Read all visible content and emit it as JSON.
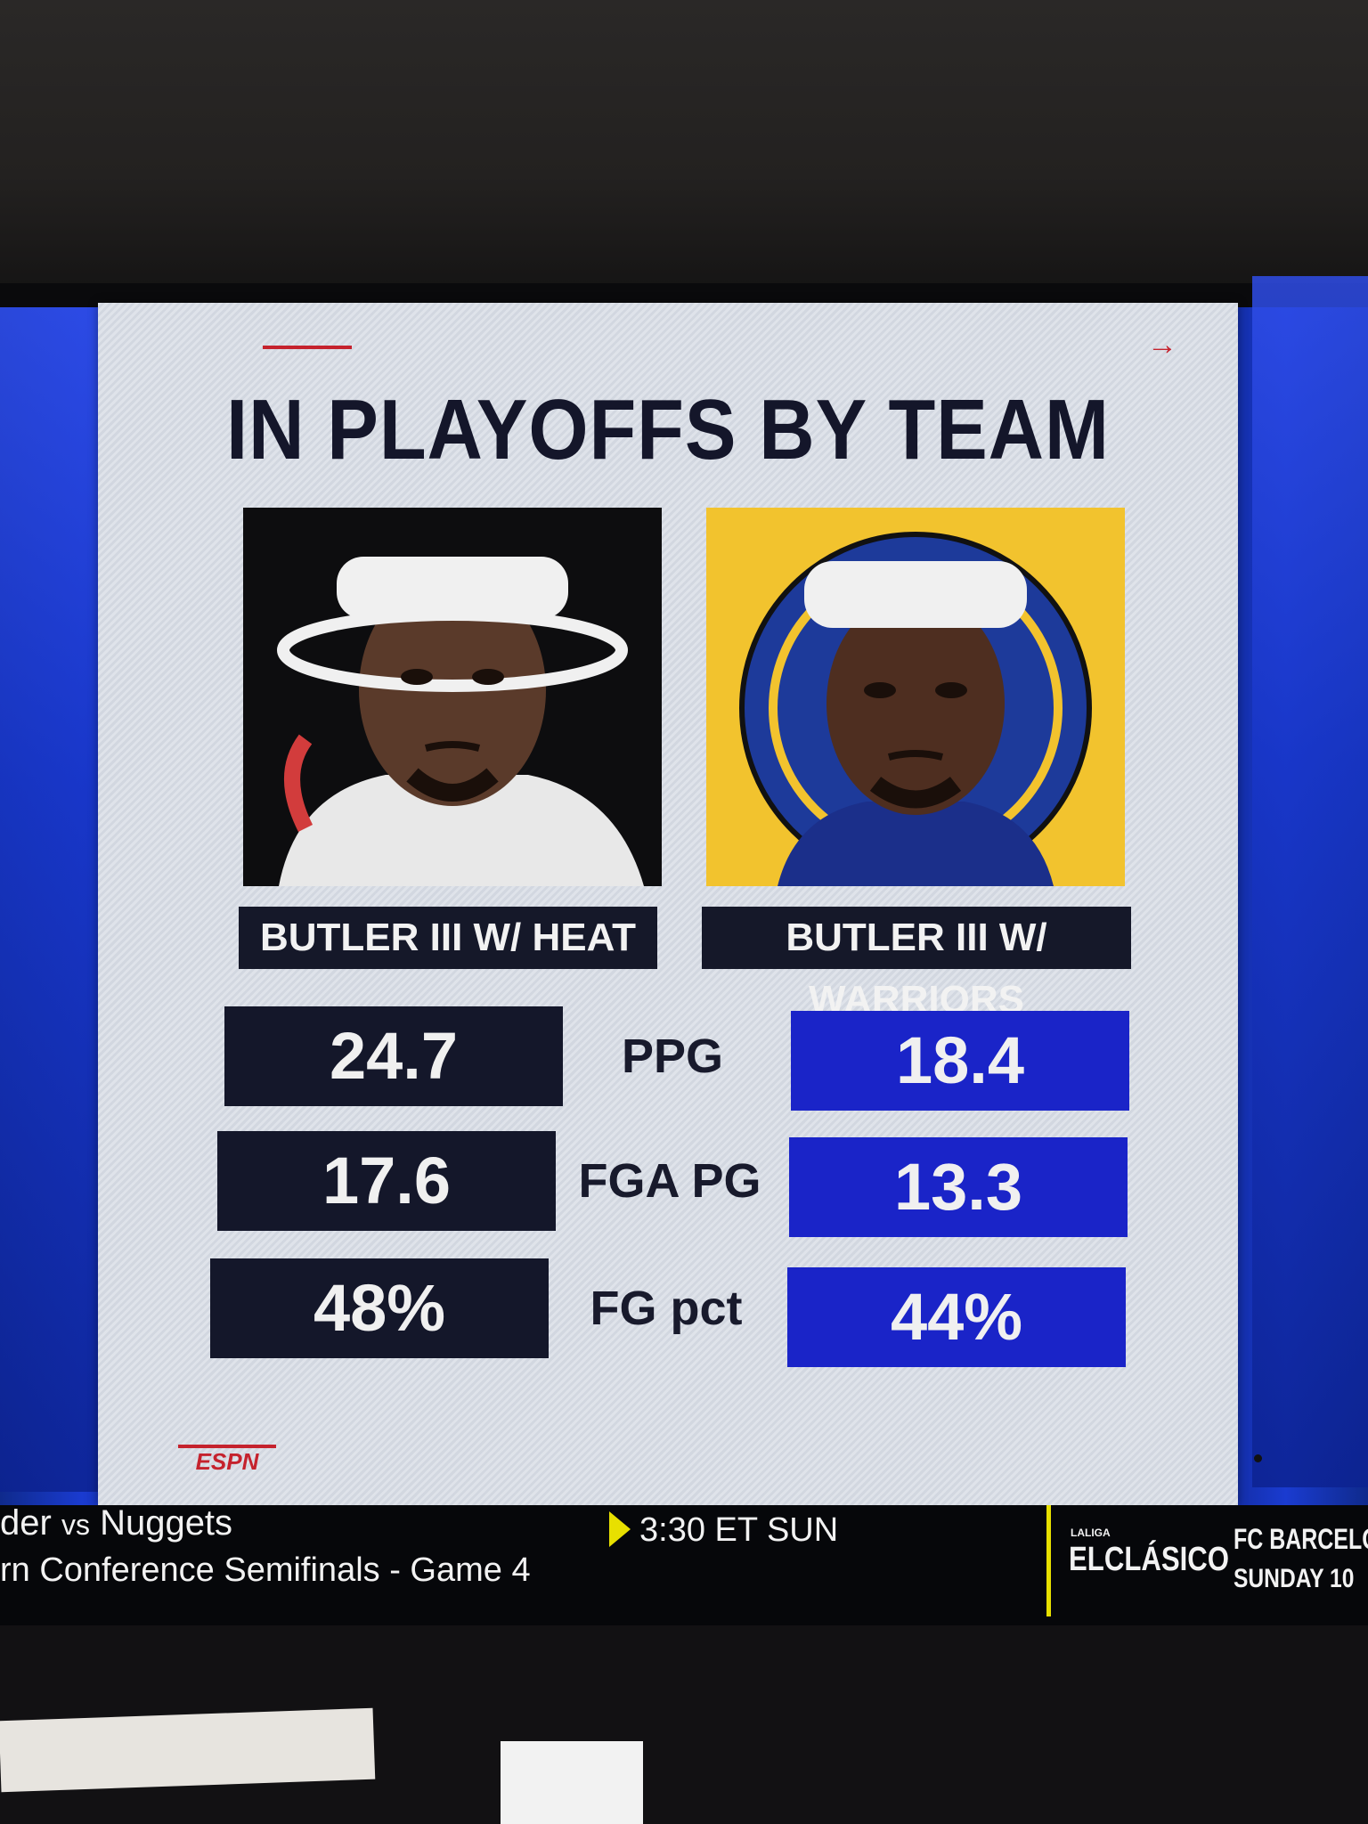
{
  "graphic": {
    "title": "IN PLAYOFFS BY TEAM",
    "arrow_glyph": "→",
    "left_player_label": "BUTLER III W/ HEAT",
    "right_player_label": "BUTLER III W/ WARRIORS",
    "stats": [
      {
        "label": "PPG",
        "heat": "24.7",
        "warriors": "18.4"
      },
      {
        "label": "FGA PG",
        "heat": "17.6",
        "warriors": "13.3"
      },
      {
        "label": "FG pct",
        "heat": "48%",
        "warriors": "44%"
      }
    ],
    "colors": {
      "heat_box": "#14172a",
      "warriors_box": "#1a24c8",
      "accent": "#c5222d",
      "warriors_bg": "#f2c32e"
    }
  },
  "brand": {
    "logo_text": "ESPN"
  },
  "ticker": {
    "matchup_team_a": "der",
    "vs_text": "vs",
    "matchup_team_b": "Nuggets",
    "event_line": "rn Conference Semifinals - Game 4",
    "time": "3:30 ET SUN",
    "promo_brand": "LALIGA",
    "promo_event": "ELCLÁSICO",
    "promo_match": "FC BARCELONA",
    "promo_date": "SUNDAY 10"
  }
}
